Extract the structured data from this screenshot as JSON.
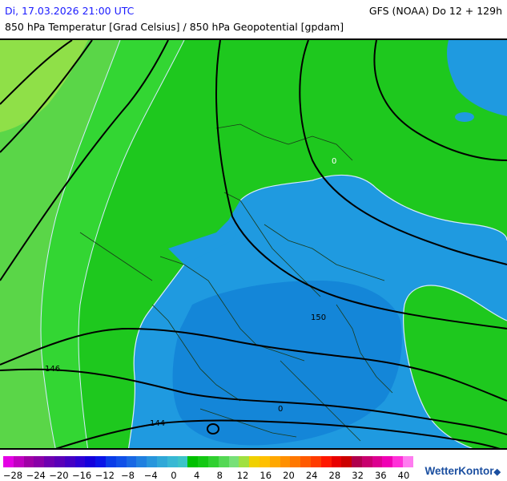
{
  "header": {
    "datetime": "Di, 17.03.2026 21:00 UTC",
    "model": "GFS (NOAA) Do 12 + 129h",
    "parameter": "850 hPa Temperatur [Grad Celsius] / 850 hPa Geopotential [gpdam]"
  },
  "map": {
    "contour_labels": [
      {
        "id": "c146",
        "text": "146"
      },
      {
        "id": "c150",
        "text": "150"
      },
      {
        "id": "c144",
        "text": "144"
      },
      {
        "id": "iso0a",
        "text": "0"
      },
      {
        "id": "iso0b",
        "text": "0"
      }
    ]
  },
  "colorscale": {
    "colors": [
      "#e400e4",
      "#c000c0",
      "#a000a6",
      "#8a00a8",
      "#6e00b0",
      "#5a00b8",
      "#4400c4",
      "#2e00d4",
      "#1400dc",
      "#0a14e8",
      "#0a3ce8",
      "#1050e8",
      "#1868e4",
      "#2080e0",
      "#2896dc",
      "#30a8d8",
      "#38b8d4",
      "#3cc4c8",
      "#00c000",
      "#14c814",
      "#30d030",
      "#54d854",
      "#78e078",
      "#a0e040",
      "#f0d000",
      "#ffc000",
      "#ffa800",
      "#ff9000",
      "#ff7800",
      "#ff5a00",
      "#ff3c00",
      "#ff1800",
      "#e80000",
      "#cc0000",
      "#b0004c",
      "#c8006e",
      "#dc0090",
      "#f000b4",
      "#ff30d8",
      "#ff7cf0"
    ],
    "tick_labels": [
      "−28",
      "−24",
      "−20",
      "−16",
      "−12",
      "−8",
      "−4",
      "0",
      "4",
      "8",
      "12",
      "16",
      "20",
      "24",
      "28",
      "32",
      "36",
      "40"
    ]
  },
  "branding": {
    "name": "WetterKontor"
  },
  "palette": {
    "cold_blue": "#1f9ae0",
    "cold_blue_deep": "#1478d0",
    "warm_green": "#1ec81e",
    "warm_green_light": "#33d633",
    "pale_green": "#63d84a",
    "lime": "#8fe048"
  }
}
